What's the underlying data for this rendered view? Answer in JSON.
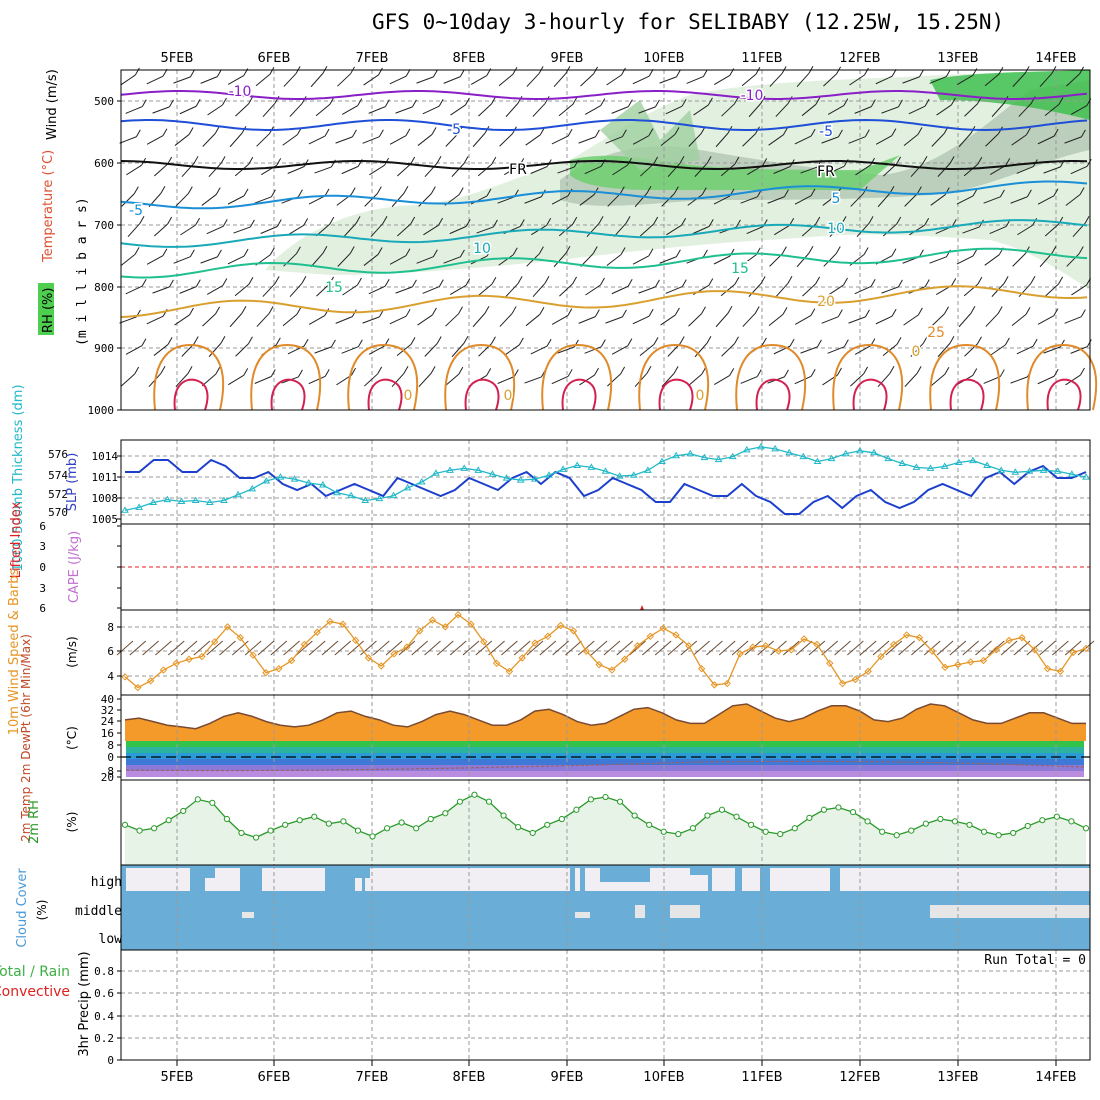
{
  "title": "GFS 0~10day 3-hourly for SELIBABY (12.25W, 15.25N)",
  "dates": [
    "5FEB",
    "6FEB",
    "7FEB",
    "8FEB",
    "9FEB",
    "10FEB",
    "11FEB",
    "12FEB",
    "13FEB",
    "14FEB"
  ],
  "run_total": "Run Total = 0",
  "colors": {
    "grid": "#9a9a9a",
    "slp": "#1c3fcc",
    "thick": "#22b8c8",
    "rh": "#2a9a2a",
    "rh_fill": "#e7f3e7",
    "wind": "#e69524",
    "cloud": "#6aaed8",
    "cloud_bg": "#f1eef4",
    "lifted": "#e02020",
    "cape": "#c070d0"
  },
  "panels": {
    "upper": {
      "ylabel_wind": "Wind (m/s)",
      "ylabel_temp": "Temperature (°C)",
      "ylabel_mb": "(m i l l i b a r s)",
      "ylabel_rh": "RH (%)",
      "ticks": [
        "500",
        "600",
        "700",
        "800",
        "900",
        "1000"
      ]
    },
    "slp": {
      "ylabel_thick": "1000-500mb Thickness (dm)",
      "ylabel_slp": "SLP (mb)",
      "thick_ticks": [
        "576",
        "574",
        "572",
        "570"
      ],
      "slp_ticks": [
        "1014",
        "1011",
        "1008",
        "1005"
      ]
    },
    "li": {
      "ylabel_li": "Lifted Index",
      "ylabel_cape": "CAPE (J/kg)",
      "ticks": [
        "6",
        "3",
        "0",
        "3",
        "6"
      ]
    },
    "wind10": {
      "ylabel": "10m Wind Speed & Barbs",
      "units": "(m/s)",
      "ticks": [
        "8",
        "6",
        "4"
      ]
    },
    "temp2m": {
      "ylabel": "2m Temp 2m DewPt (6hr Min/Max)",
      "units": "(°C)",
      "ticks": [
        "40",
        "32",
        "24",
        "16",
        "8",
        "0",
        "8",
        "20"
      ]
    },
    "rh2m": {
      "ylabel": "2m RH",
      "units": "(%)"
    },
    "cloud": {
      "ylabel": "Cloud Cover",
      "units": "(%)",
      "levels": [
        "high",
        "middle",
        "low"
      ]
    },
    "precip": {
      "ylabel1": "Total / Rain",
      "ylabel2": "Convective",
      "units": "3hr Precip (mm)",
      "ticks": [
        "0.8",
        "0.6",
        "0.4",
        "0.2",
        "0"
      ]
    }
  },
  "isotherm_labels": [
    "-10",
    "-10",
    "-5",
    "-5",
    "FR",
    "FR",
    "-5",
    "5",
    "10",
    "10",
    "15",
    "15",
    "20",
    "25",
    "0",
    "0",
    "0",
    "0"
  ],
  "chart_data": [
    {
      "type": "line",
      "name": "slp",
      "series": [
        {
          "name": "SLP (mb)",
          "values": [
            1012,
            1012,
            1014,
            1014,
            1012,
            1012,
            1014,
            1013,
            1011,
            1011,
            1012,
            1010,
            1009,
            1010,
            1008,
            1009,
            1010,
            1009,
            1008,
            1011,
            1010,
            1009,
            1008,
            1009,
            1011,
            1010,
            1009,
            1011,
            1012,
            1010,
            1012,
            1011,
            1008,
            1009,
            1011,
            1010,
            1009,
            1007,
            1007,
            1010,
            1009,
            1008,
            1008,
            1010,
            1008,
            1007,
            1005,
            1005,
            1007,
            1008,
            1006,
            1008,
            1009,
            1007,
            1006,
            1007,
            1009,
            1010,
            1009,
            1008,
            1011,
            1012,
            1010,
            1012,
            1013,
            1011,
            1011,
            1012
          ]
        }
      ],
      "ylim": [
        1004,
        1016
      ]
    },
    {
      "type": "line",
      "name": "thickness",
      "series": [
        {
          "name": "1000-500mb Thickness (dm)",
          "values": [
            570.2,
            570.5,
            571,
            571.3,
            571.1,
            571.2,
            571,
            571.2,
            571.8,
            572.4,
            573.2,
            573.6,
            573.4,
            573,
            572.8,
            572,
            571.7,
            571.2,
            571.4,
            571.7,
            572.5,
            573.1,
            574,
            574.3,
            574.5,
            574.3,
            573.9,
            573.5,
            573.3,
            573.4,
            573.8,
            574.4,
            574.8,
            574.6,
            574.2,
            573.7,
            573.8,
            574.3,
            575.2,
            575.8,
            576,
            575.6,
            575.4,
            575.7,
            576.4,
            576.7,
            576.5,
            576.1,
            575.7,
            575.2,
            575.5,
            576,
            576.3,
            576.1,
            575.5,
            575,
            574.6,
            574.5,
            574.7,
            575.1,
            575.3,
            574.8,
            574.3,
            574.1,
            574.2,
            574.3,
            574.2,
            573.9,
            573.6
          ]
        }
      ],
      "ylim": [
        569,
        577
      ]
    },
    {
      "type": "line",
      "name": "wind10",
      "series": [
        {
          "name": "10m Wind Speed (m/s)",
          "values": [
            4.2,
            3.4,
            3.9,
            4.7,
            5.2,
            5.5,
            5.7,
            6.8,
            7.9,
            7.1,
            5.8,
            4.5,
            4.8,
            5.4,
            6.6,
            7.5,
            8.3,
            8.1,
            6.9,
            5.6,
            5.0,
            5.9,
            6.4,
            7.6,
            8.4,
            7.9,
            8.8,
            8.1,
            6.8,
            5.2,
            4.6,
            5.6,
            6.7,
            7.2,
            8.0,
            7.6,
            6.1,
            5.1,
            4.7,
            5.5,
            6.5,
            7.2,
            7.8,
            7.3,
            6.5,
            4.8,
            3.6,
            3.7,
            5.9,
            6.4,
            6.5,
            6.1,
            6.2,
            7.0,
            6.6,
            5.2,
            3.7,
            4.0,
            4.6,
            5.7,
            6.6,
            7.3,
            7.1,
            6.1,
            4.9,
            5.1,
            5.3,
            5.4,
            6.2,
            6.9,
            7.1,
            6.2,
            4.8,
            4.6,
            6.0,
            6.3
          ]
        }
      ],
      "ylim": [
        3,
        9
      ]
    },
    {
      "type": "area",
      "name": "temp2m",
      "series": [
        {
          "name": "2m Temp (°C)",
          "values": [
            27,
            28,
            26,
            24,
            23,
            22,
            25,
            29,
            31,
            29,
            26,
            24,
            23,
            24,
            27,
            31,
            32,
            29,
            27,
            24,
            23,
            26,
            30,
            32,
            30,
            27,
            24,
            24,
            27,
            32,
            33,
            30,
            26,
            24,
            25,
            29,
            33,
            34,
            31,
            27,
            25,
            25,
            30,
            35,
            36,
            32,
            28,
            26,
            28,
            32,
            35,
            35,
            32,
            27,
            26,
            28,
            33,
            36,
            35,
            31,
            27,
            25,
            25,
            28,
            31,
            31,
            28,
            25,
            25
          ]
        }
      ],
      "ylim": [
        -20,
        40
      ]
    },
    {
      "type": "line",
      "name": "rh2m",
      "series": [
        {
          "name": "2m RH (%)",
          "values": [
            33,
            28,
            30,
            37,
            45,
            55,
            52,
            38,
            26,
            22,
            28,
            33,
            37,
            40,
            34,
            36,
            28,
            23,
            30,
            35,
            30,
            38,
            43,
            53,
            59,
            53,
            41,
            31,
            26,
            33,
            38,
            46,
            55,
            57,
            53,
            41,
            33,
            27,
            25,
            30,
            41,
            46,
            40,
            33,
            27,
            25,
            30,
            39,
            46,
            48,
            44,
            36,
            27,
            24,
            28,
            34,
            38,
            36,
            33,
            27,
            24,
            26,
            32,
            37,
            40,
            36,
            30
          ]
        }
      ],
      "ylim": [
        0,
        100
      ]
    },
    {
      "type": "line",
      "name": "precip",
      "series": [
        {
          "name": "3hr Precip (mm)",
          "values": [
            0,
            0,
            0,
            0,
            0,
            0,
            0,
            0,
            0,
            0
          ]
        }
      ],
      "ylim": [
        0,
        0.95
      ]
    }
  ]
}
